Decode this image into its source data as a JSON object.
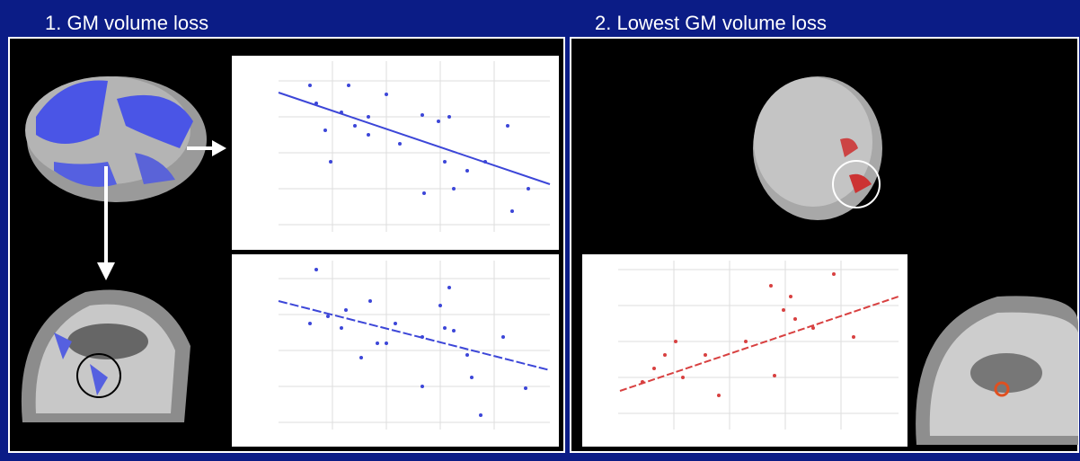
{
  "panels": [
    {
      "title": "1. GM volume loss"
    },
    {
      "title": "2. Lowest GM volume loss"
    }
  ]
}
